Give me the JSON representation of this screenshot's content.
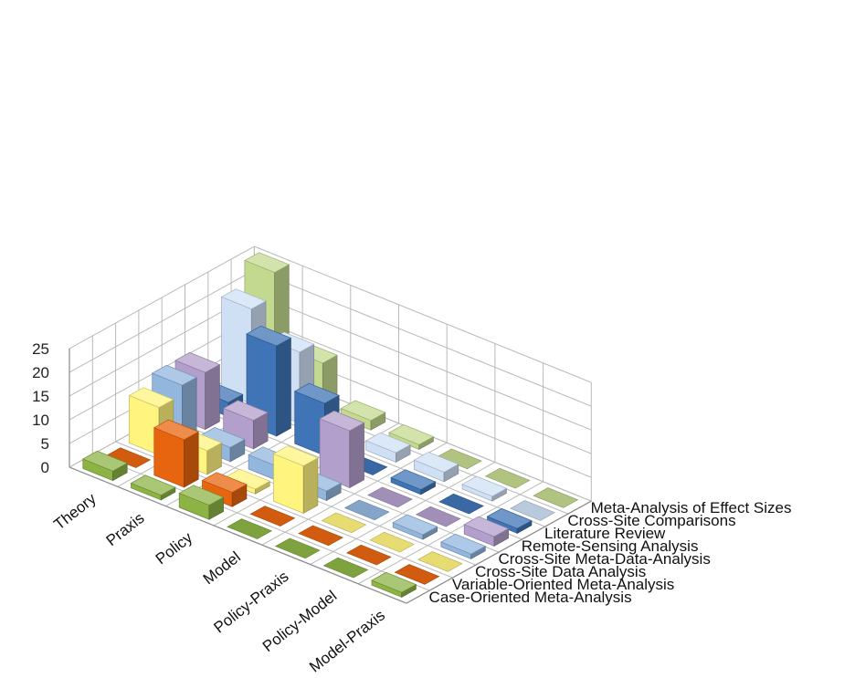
{
  "chart_data": {
    "type": "bar",
    "subtype": "3d-column",
    "title": "",
    "xlabel": "",
    "ylabel": "",
    "ylim": [
      0,
      25
    ],
    "y_ticks": [
      "0",
      "5",
      "10",
      "15",
      "20",
      "25"
    ],
    "grid": true,
    "categories": [
      "Theory",
      "Praxis",
      "Policy",
      "Model",
      "Policy-Praxis",
      "Policy-Model",
      "Model-Praxis"
    ],
    "series": [
      {
        "name": "Case-Oriented Meta-Analysis",
        "color": "#8cb445",
        "values": [
          2,
          1,
          3,
          0,
          0,
          0,
          1
        ]
      },
      {
        "name": "Variable-Oriented Meta-Analysis",
        "color": "#e8650f",
        "values": [
          0,
          10,
          3,
          0,
          0,
          0,
          0
        ]
      },
      {
        "name": "Cross-Site Data Analysis",
        "color": "#fff47e",
        "values": [
          10,
          5,
          1,
          10,
          0,
          0,
          0
        ]
      },
      {
        "name": "Cross-Site Meta-Data-Analysis",
        "color": "#93b6df",
        "values": [
          12,
          3,
          3,
          2,
          0,
          1,
          1
        ]
      },
      {
        "name": "Remote-Sensing Analysis",
        "color": "#b39fcc",
        "values": [
          12,
          6,
          0,
          12,
          0,
          0,
          2
        ]
      },
      {
        "name": "Literature Review",
        "color": "#3f74b6",
        "values": [
          3,
          19,
          11,
          0,
          1,
          0,
          1
        ]
      },
      {
        "name": "Cross-Site Comparisons",
        "color": "#cfe0f5",
        "values": [
          20,
          15,
          2,
          2,
          2,
          1,
          0
        ]
      },
      {
        "name": "Meta-Analysis of Effect Sizes",
        "color": "#c3d98f",
        "values": [
          25,
          10,
          2,
          1,
          0,
          0,
          0
        ]
      }
    ]
  }
}
